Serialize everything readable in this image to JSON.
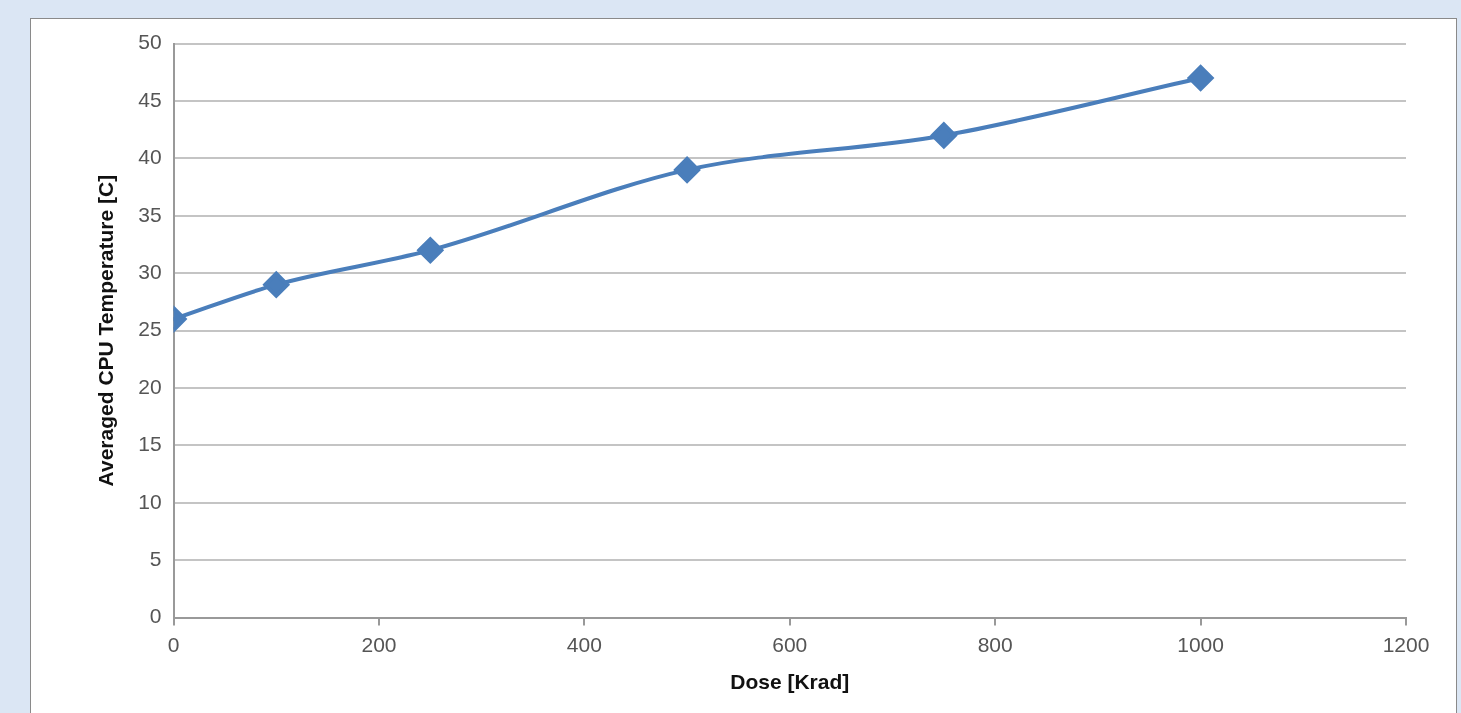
{
  "chart_data": {
    "type": "line",
    "xlabel": "Dose [Krad]",
    "ylabel": "Averaged CPU Temperature [C]",
    "x": [
      0,
      100,
      250,
      500,
      750,
      1000
    ],
    "series": [
      {
        "color": "#4a7ebb",
        "values": [
          26,
          29,
          32,
          39,
          42,
          47
        ]
      }
    ],
    "xlim": [
      0,
      1200
    ],
    "xticks": [
      0,
      200,
      400,
      600,
      800,
      1000,
      1200
    ],
    "ylim": [
      0,
      50
    ],
    "yticks": [
      0,
      5,
      10,
      15,
      20,
      25,
      30,
      35,
      40,
      45,
      50
    ],
    "grid": "y",
    "legend": false,
    "marker": "diamond",
    "line_style": "solid"
  }
}
